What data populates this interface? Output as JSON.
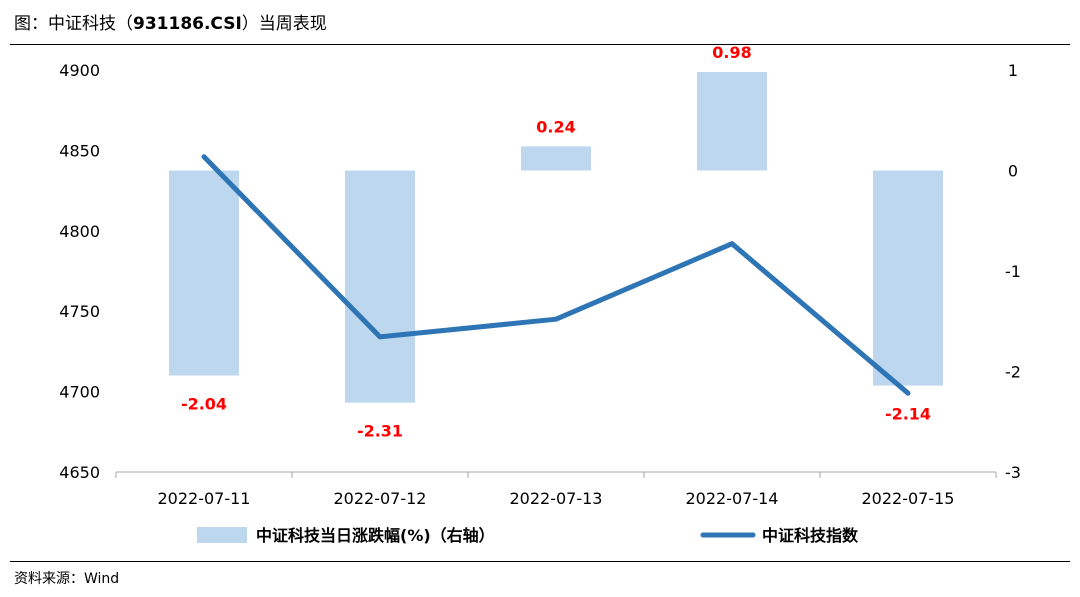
{
  "header": {
    "prefix": "图：中证科技（",
    "code": "931186.CSI",
    "suffix": "）当周表现"
  },
  "source": "资料来源：Wind",
  "colors": {
    "bar": "#bdd7ee",
    "line": "#2e75b6",
    "data_label": "#ff0000"
  },
  "chart_data": {
    "type": "bar",
    "categories": [
      "2022-07-11",
      "2022-07-12",
      "2022-07-13",
      "2022-07-14",
      "2022-07-15"
    ],
    "series": [
      {
        "name": "中证科技当日涨跌幅(%)（右轴）",
        "type": "bar",
        "axis": "right",
        "values": [
          -2.04,
          -2.31,
          0.24,
          0.98,
          -2.14
        ],
        "labels": [
          "-2.04",
          "-2.31",
          "0.24",
          "0.98",
          "-2.14"
        ]
      },
      {
        "name": "中证科技指数",
        "type": "line",
        "axis": "left",
        "values": [
          4846,
          4734,
          4745,
          4792,
          4699
        ]
      }
    ],
    "ylim_left": [
      4650,
      4900
    ],
    "yticks_left": [
      "4650",
      "4700",
      "4750",
      "4800",
      "4850",
      "4900"
    ],
    "ylim_right": [
      -3,
      1
    ],
    "yticks_right": [
      "-3",
      "-2",
      "-1",
      "0",
      "1"
    ],
    "legend_position": "bottom",
    "grid": false
  }
}
